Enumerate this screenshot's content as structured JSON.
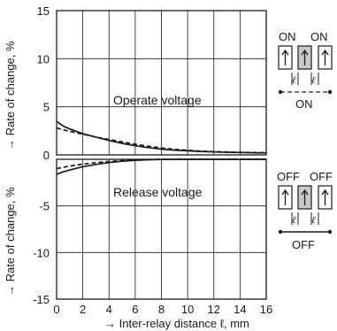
{
  "chart_data": [
    {
      "type": "line",
      "panel": "operate",
      "annotation": "Operate voltage",
      "xlim": [
        0,
        16
      ],
      "ylim": [
        0,
        15
      ],
      "xticks": [
        0,
        2,
        4,
        6,
        8,
        10,
        12,
        14,
        16
      ],
      "yticks": [
        0,
        5,
        10,
        15
      ],
      "series": [
        {
          "style": "solid",
          "x": [
            0,
            0.5,
            1,
            2,
            3,
            4,
            5,
            6,
            7,
            8,
            9,
            10,
            11,
            12,
            13,
            14,
            15,
            16
          ],
          "y": [
            3.5,
            3.0,
            2.7,
            2.2,
            1.85,
            1.5,
            1.2,
            0.95,
            0.75,
            0.6,
            0.5,
            0.42,
            0.35,
            0.3,
            0.27,
            0.25,
            0.22,
            0.2
          ]
        },
        {
          "style": "dashed",
          "x": [
            0,
            0.5,
            1,
            2,
            3,
            4,
            5,
            6,
            7,
            8,
            9,
            10,
            11,
            12,
            13,
            14,
            15,
            16
          ],
          "y": [
            2.8,
            2.6,
            2.45,
            2.15,
            1.85,
            1.6,
            1.35,
            1.1,
            0.9,
            0.72,
            0.58,
            0.48,
            0.4,
            0.34,
            0.3,
            0.27,
            0.25,
            0.23
          ]
        }
      ]
    },
    {
      "type": "line",
      "panel": "release",
      "annotation": "Release voltage",
      "xlim": [
        0,
        16
      ],
      "ylim": [
        -15,
        0
      ],
      "xticks": [
        0,
        2,
        4,
        6,
        8,
        10,
        12,
        14,
        16
      ],
      "yticks": [
        0,
        -5,
        -10,
        -15
      ],
      "series": [
        {
          "style": "solid",
          "x": [
            0,
            0.5,
            1,
            2,
            3,
            4,
            5,
            6,
            7,
            8,
            10,
            12,
            14,
            16
          ],
          "y": [
            -1.6,
            -1.35,
            -1.15,
            -0.8,
            -0.55,
            -0.35,
            -0.2,
            -0.1,
            -0.05,
            -0.02,
            0,
            0,
            0,
            0
          ]
        },
        {
          "style": "dashed",
          "x": [
            0,
            0.5,
            1,
            2,
            3,
            4,
            5,
            6,
            7,
            8,
            10,
            12,
            14,
            16
          ],
          "y": [
            -1.0,
            -0.85,
            -0.72,
            -0.52,
            -0.36,
            -0.24,
            -0.14,
            -0.07,
            -0.03,
            -0.01,
            0,
            0,
            0,
            0
          ]
        }
      ]
    }
  ],
  "labels": {
    "y_top": "→ Rate of change, %",
    "y_bottom": "→ Rate of change, %",
    "x_axis": "→ Inter-relay distance ℓ, mm",
    "operate": "Operate voltage",
    "release": "Release voltage"
  },
  "legend": {
    "top_left": "ON",
    "top_right": "ON",
    "top_bottom": "ON",
    "bottom_left": "OFF",
    "bottom_right": "OFF",
    "bottom_bottom": "OFF",
    "ell": "ℓ"
  },
  "colors": {
    "ink": "#1a1a1a",
    "relay_fill": "#c8c8c8"
  }
}
